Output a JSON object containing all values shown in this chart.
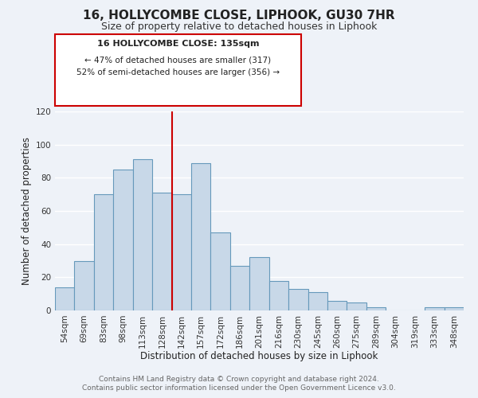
{
  "title": "16, HOLLYCOMBE CLOSE, LIPHOOK, GU30 7HR",
  "subtitle": "Size of property relative to detached houses in Liphook",
  "xlabel": "Distribution of detached houses by size in Liphook",
  "ylabel": "Number of detached properties",
  "categories": [
    "54sqm",
    "69sqm",
    "83sqm",
    "98sqm",
    "113sqm",
    "128sqm",
    "142sqm",
    "157sqm",
    "172sqm",
    "186sqm",
    "201sqm",
    "216sqm",
    "230sqm",
    "245sqm",
    "260sqm",
    "275sqm",
    "289sqm",
    "304sqm",
    "319sqm",
    "333sqm",
    "348sqm"
  ],
  "values": [
    14,
    30,
    70,
    85,
    91,
    71,
    70,
    89,
    47,
    27,
    32,
    18,
    13,
    11,
    6,
    5,
    2,
    0,
    0,
    2,
    2
  ],
  "bar_color": "#c8d8e8",
  "bar_edge_color": "#6699bb",
  "ylim": [
    0,
    120
  ],
  "yticks": [
    0,
    20,
    40,
    60,
    80,
    100,
    120
  ],
  "vline_x": 5.5,
  "vline_color": "#cc0000",
  "annotation_title": "16 HOLLYCOMBE CLOSE: 135sqm",
  "annotation_line1": "← 47% of detached houses are smaller (317)",
  "annotation_line2": "52% of semi-detached houses are larger (356) →",
  "annotation_box_color": "#ffffff",
  "annotation_box_edge": "#cc0000",
  "footer1": "Contains HM Land Registry data © Crown copyright and database right 2024.",
  "footer2": "Contains public sector information licensed under the Open Government Licence v3.0.",
  "background_color": "#eef2f8",
  "grid_color": "#ffffff",
  "title_fontsize": 11,
  "subtitle_fontsize": 9,
  "axis_label_fontsize": 8.5,
  "tick_fontsize": 7.5,
  "footer_fontsize": 6.5
}
